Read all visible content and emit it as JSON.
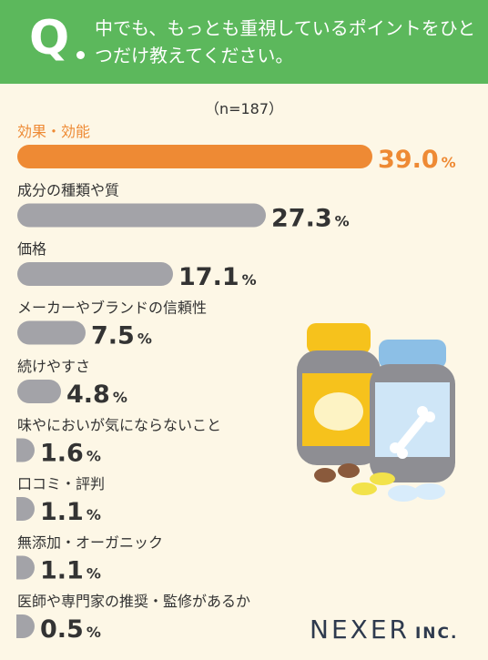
{
  "question": {
    "letter": "Q",
    "text": "中でも、もっとも重視しているポイントをひとつだけ教えてください。"
  },
  "sample_size": "（n=187）",
  "logo": {
    "main": "NEXER",
    "suffix": "INC."
  },
  "colors": {
    "header": "#5cb85c",
    "highlight": "#ee8a34",
    "bar": "#a3a3a8",
    "background": "#fdf7e6"
  },
  "chart_data": {
    "type": "bar",
    "orientation": "horizontal",
    "unit": "%",
    "categories": [
      "効果・効能",
      "成分の種類や質",
      "価格",
      "メーカーやブランドの信頼性",
      "続けやすさ",
      "味やにおいが気にならないこと",
      "口コミ・評判",
      "無添加・オーガニック",
      "医師や専門家の推奨・監修があるか"
    ],
    "values": [
      39.0,
      27.3,
      17.1,
      7.5,
      4.8,
      1.6,
      1.1,
      1.1,
      0.5
    ],
    "value_labels": [
      "39.0",
      "27.3",
      "17.1",
      "7.5",
      "4.8",
      "1.6",
      "1.1",
      "1.1",
      "0.5"
    ],
    "highlight_index": 0
  }
}
